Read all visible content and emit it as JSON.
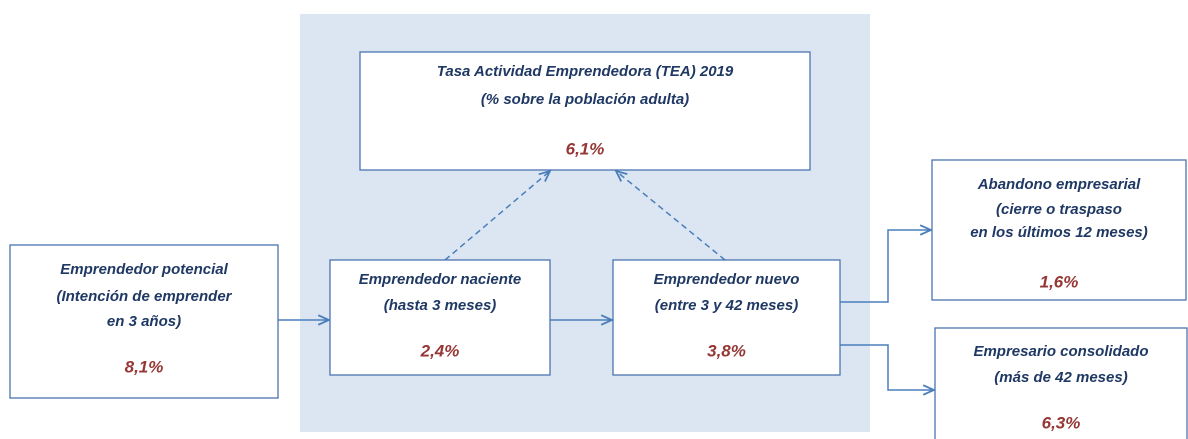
{
  "nodes": [
    {
      "lines": [
        "Tasa Actividad Emprendedora (TEA) 2019",
        "(% sobre la población adulta)"
      ],
      "value": "6,1%"
    },
    {
      "lines": [
        "Emprendedor potencial",
        "(Intención de emprender",
        "en 3 años)"
      ],
      "value": "8,1%"
    },
    {
      "lines": [
        "Emprendedor naciente",
        "(hasta 3 meses)"
      ],
      "value": "2,4%"
    },
    {
      "lines": [
        "Emprendedor nuevo",
        "(entre 3 y 42 meses)"
      ],
      "value": "3,8%"
    },
    {
      "lines": [
        "Abandono empresarial",
        "(cierre o traspaso",
        "en los últimos 12 meses)"
      ],
      "value": "1,6%"
    },
    {
      "lines": [
        "Empresario consolidado",
        "(más de 42 meses)"
      ],
      "value": "6,3%"
    }
  ]
}
